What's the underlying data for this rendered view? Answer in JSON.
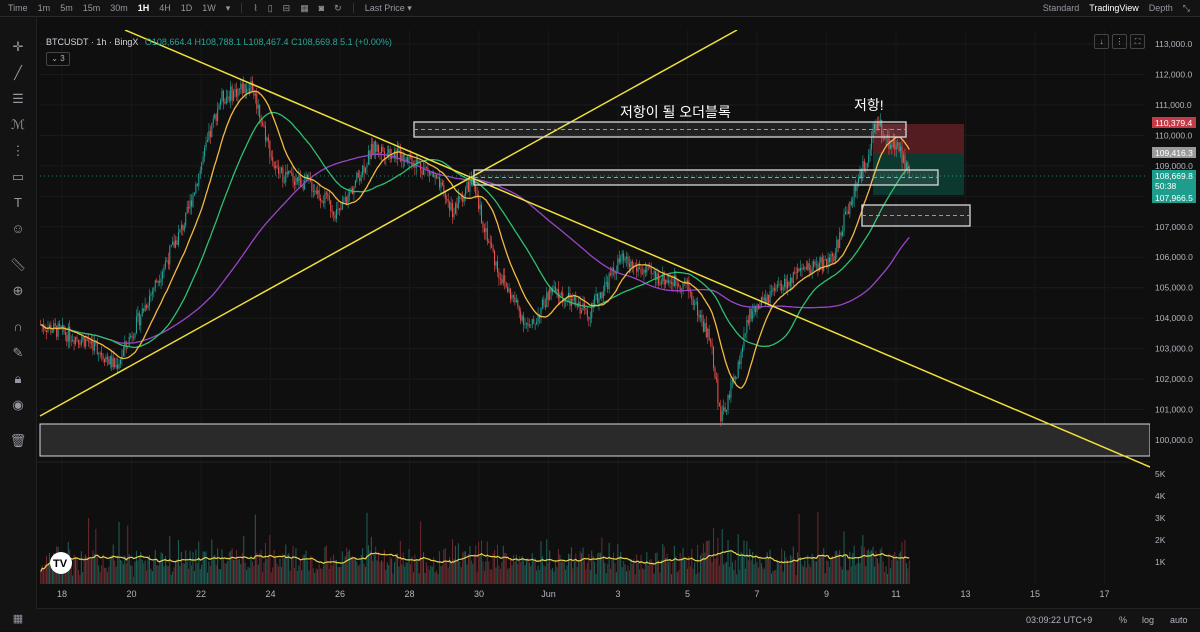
{
  "toolbar": {
    "time_label": "Time",
    "timeframes": [
      "1m",
      "5m",
      "15m",
      "30m",
      "1H",
      "4H",
      "1D",
      "1W"
    ],
    "active_timeframe": "1H",
    "price_mode": "Last Price",
    "view_modes": [
      "Standard",
      "TradingView",
      "Depth"
    ],
    "active_view": "TradingView"
  },
  "legend": {
    "symbol": "BTCUSDT · 1h · BingX",
    "open": "O108,664.4",
    "high": "H108,788.1",
    "low": "L108,467.4",
    "close": "C108,669.8",
    "change": "5.1 (+0.00%)",
    "indicator_count": "3"
  },
  "annotations": {
    "order_block_label": "저항이 될 오더블록",
    "resistance_label": "저항!"
  },
  "price_labels": {
    "tp": "110,379.4",
    "mid": "109,416.3",
    "current": "108,669.8",
    "countdown": "50:38",
    "sl": "107,966.5"
  },
  "bottom": {
    "clock": "03:09:22 UTC+9",
    "percent": "%",
    "log": "log",
    "auto": "auto"
  },
  "colors": {
    "up": "#26a69a",
    "down": "#ef5350",
    "trendline": "#f0e03a",
    "ma_fast": "#f5b942",
    "ma_mid": "#2fbf71",
    "ma_slow": "#9b45c9",
    "tp_zone": "#5b1e24",
    "sl_zone": "#0d3b33"
  },
  "chart_data": {
    "type": "candlestick",
    "symbol": "BTCUSDT",
    "interval": "1h",
    "exchange": "BingX",
    "y_ticks": [
      "113,000.0",
      "112,000.0",
      "111,000.0",
      "110,000.0",
      "109,000.0",
      "108,000.0",
      "107,000.0",
      "106,000.0",
      "105,000.0",
      "104,000.0",
      "103,000.0",
      "102,000.0",
      "101,000.0",
      "100,000.0"
    ],
    "ylim": [
      99500,
      113200
    ],
    "x_ticks": [
      "18",
      "20",
      "22",
      "24",
      "26",
      "28",
      "30",
      "Jun",
      "3",
      "5",
      "7",
      "9",
      "11",
      "13",
      "15",
      "17"
    ],
    "volume_ticks": [
      "5K",
      "4K",
      "3K",
      "2K",
      "1K"
    ],
    "price_path": [
      {
        "x": 0,
        "y": 103800
      },
      {
        "x": 1.5,
        "y": 103200
      },
      {
        "x": 2.2,
        "y": 102400
      },
      {
        "x": 3.2,
        "y": 104800
      },
      {
        "x": 4.2,
        "y": 107200
      },
      {
        "x": 5.2,
        "y": 111200
      },
      {
        "x": 6.1,
        "y": 111700
      },
      {
        "x": 6.8,
        "y": 108800
      },
      {
        "x": 7.8,
        "y": 108400
      },
      {
        "x": 8.6,
        "y": 107400
      },
      {
        "x": 9.6,
        "y": 109600
      },
      {
        "x": 10.6,
        "y": 109300
      },
      {
        "x": 11.3,
        "y": 108700
      },
      {
        "x": 11.9,
        "y": 107500
      },
      {
        "x": 12.4,
        "y": 108500
      },
      {
        "x": 13.2,
        "y": 105500
      },
      {
        "x": 14.1,
        "y": 103600
      },
      {
        "x": 14.7,
        "y": 104900
      },
      {
        "x": 15.8,
        "y": 104200
      },
      {
        "x": 16.7,
        "y": 105900
      },
      {
        "x": 17.6,
        "y": 105400
      },
      {
        "x": 18.6,
        "y": 105100
      },
      {
        "x": 19.3,
        "y": 103200
      },
      {
        "x": 19.6,
        "y": 100600
      },
      {
        "x": 20.1,
        "y": 102500
      },
      {
        "x": 20.4,
        "y": 104100
      },
      {
        "x": 21.3,
        "y": 105000
      },
      {
        "x": 22.2,
        "y": 105700
      },
      {
        "x": 22.8,
        "y": 105900
      },
      {
        "x": 23.2,
        "y": 107500
      },
      {
        "x": 23.7,
        "y": 109000
      },
      {
        "x": 24.1,
        "y": 110500
      },
      {
        "x": 24.3,
        "y": 109900
      },
      {
        "x": 24.7,
        "y": 109600
      },
      {
        "x": 25.0,
        "y": 108670
      }
    ]
  }
}
